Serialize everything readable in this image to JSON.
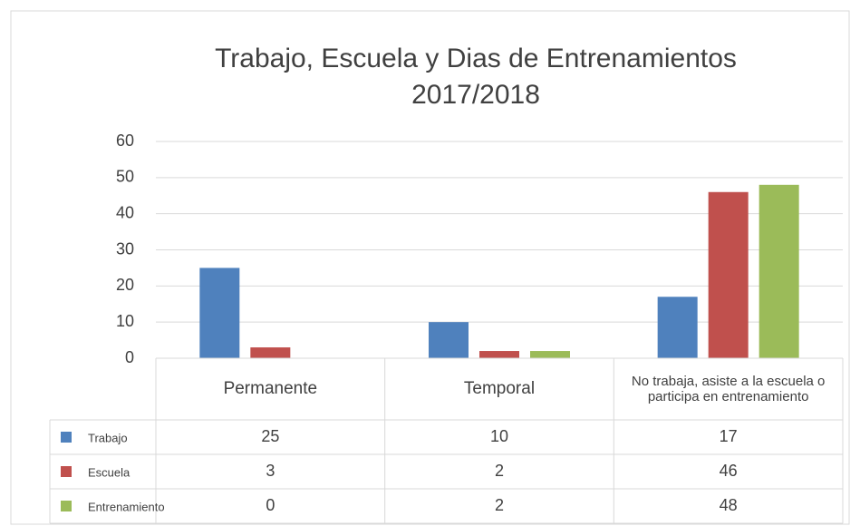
{
  "chart_data": {
    "type": "bar",
    "title": "Trabajo, Escuela y  Dias de Entrenamientos 2017/2018",
    "categories": [
      "Permanente",
      "Temporal",
      "No trabaja, asiste a la escuela o participa en entrenamiento"
    ],
    "series": [
      {
        "name": "Trabajo",
        "color": "#4f81bd",
        "values": [
          25,
          10,
          17
        ]
      },
      {
        "name": "Escuela",
        "color": "#c0504d",
        "values": [
          3,
          2,
          46
        ]
      },
      {
        "name": "Entrenamiento",
        "color": "#9bbb59",
        "values": [
          0,
          2,
          48
        ]
      }
    ],
    "ylim": [
      0,
      60
    ],
    "yticks": [
      0,
      10,
      20,
      30,
      40,
      50,
      60
    ],
    "grid": true,
    "data_table": true
  }
}
